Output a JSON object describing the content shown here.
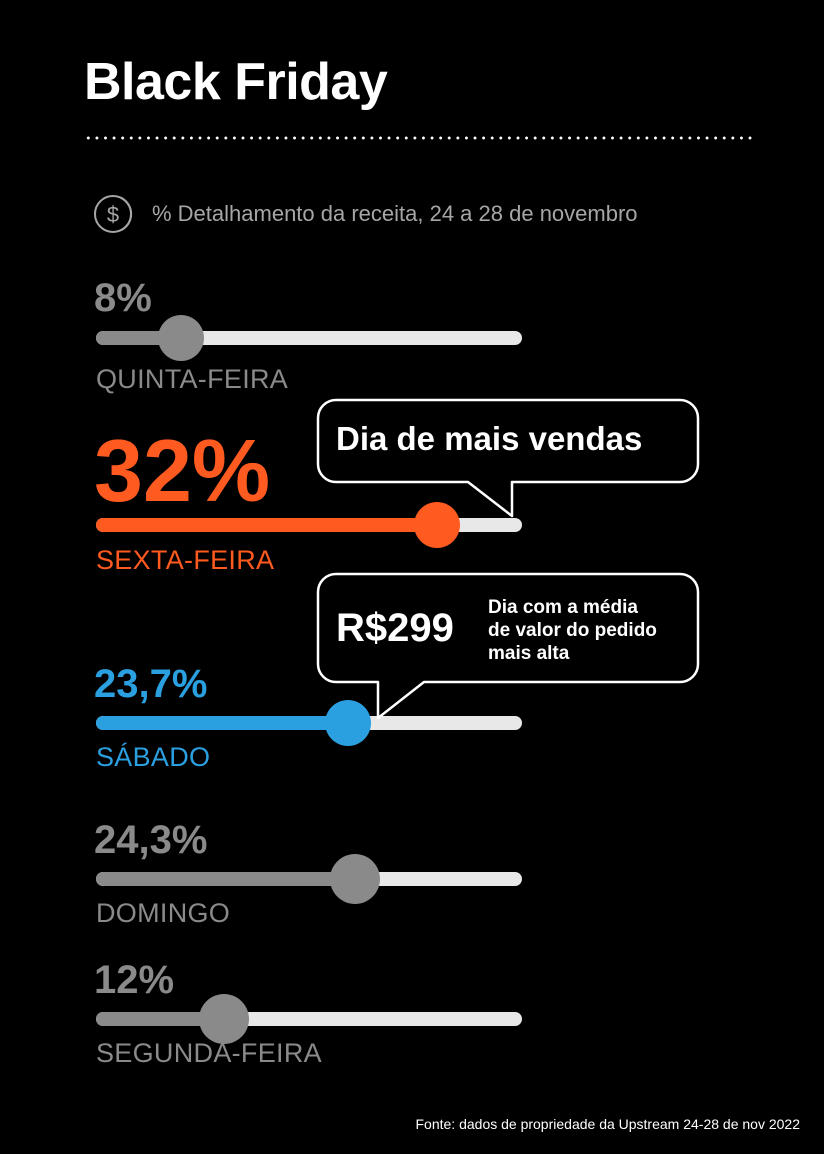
{
  "title": "Black Friday",
  "subtitle": "% Detalhamento da receita, 24 a 28 de novembro",
  "icon": "dollar-coin-icon",
  "colors": {
    "background": "#000000",
    "neutral": "#8a8a8a",
    "highlight_orange": "#ff5a1f",
    "highlight_blue": "#2aa0e0",
    "track": "#e8e8e8"
  },
  "chart_data": {
    "type": "bar",
    "categories": [
      "QUINTA-FEIRA",
      "SEXTA-FEIRA",
      "SÁBADO",
      "DOMINGO",
      "SEGUNDA-FEIRA"
    ],
    "value_labels": [
      "8%",
      "32%",
      "23,7%",
      "24,3%",
      "12%"
    ],
    "values": [
      8,
      32,
      23.7,
      24.3,
      12
    ],
    "xlim": [
      0,
      40
    ],
    "ylabel": "",
    "xlabel": "",
    "grid": false,
    "legend": "none"
  },
  "callouts": {
    "top_day": {
      "text": "Dia de mais vendas"
    },
    "avg_order": {
      "value": "R$299",
      "description": [
        "Dia com a média",
        "de valor do pedido",
        "mais alta"
      ]
    }
  },
  "footer": "Fonte: dados de propriedade da Upstream 24-28 de nov 2022"
}
